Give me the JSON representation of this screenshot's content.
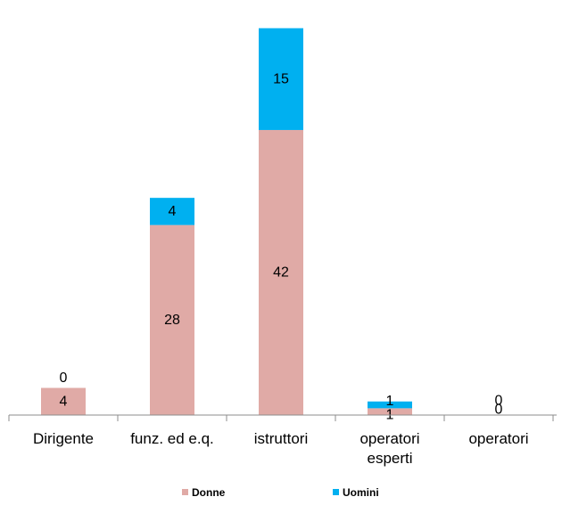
{
  "chart_data": {
    "type": "bar",
    "stacked": true,
    "categories": [
      "Dirigente",
      "funz. ed e.q.",
      "istruttori",
      "operatori esperti",
      "operatori"
    ],
    "category_label_lines": [
      [
        "Dirigente"
      ],
      [
        "funz. ed e.q."
      ],
      [
        "istruttori"
      ],
      [
        "operatori",
        "esperti"
      ],
      [
        "operatori"
      ]
    ],
    "series": [
      {
        "name": "Donne",
        "values": [
          4,
          28,
          42,
          1,
          0
        ],
        "color": "#e0aaa6"
      },
      {
        "name": "Uomini",
        "values": [
          0,
          4,
          15,
          1,
          0
        ],
        "color": "#00b0f0"
      }
    ],
    "ylim": [
      0,
      58
    ],
    "title": "",
    "xlabel": "",
    "ylabel": "",
    "grid": false,
    "legend": "bottom"
  }
}
